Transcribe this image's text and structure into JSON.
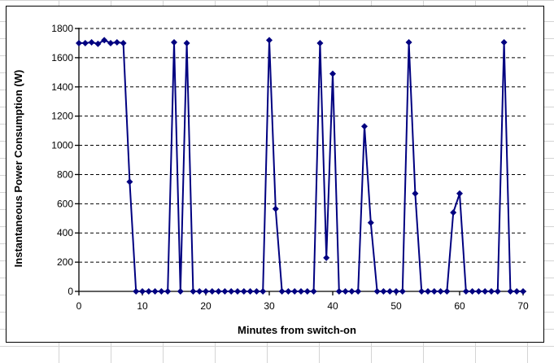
{
  "sheet": {
    "grid_color": "#d4d4d4",
    "background": "#ffffff"
  },
  "chart": {
    "background": "#ffffff",
    "border_color": "#000000",
    "series_color": "#000080",
    "gridline_color": "#000000",
    "x_axis": {
      "title": "Minutes from switch-on",
      "tick_labels": [
        "0",
        "10",
        "20",
        "30",
        "40",
        "50",
        "60",
        "70"
      ]
    },
    "y_axis": {
      "title": "Instantaneous Power Consumption (W)",
      "tick_labels": [
        "0",
        "200",
        "400",
        "600",
        "800",
        "1000",
        "1200",
        "1400",
        "1600",
        "1800"
      ]
    }
  },
  "chart_data": {
    "type": "line",
    "title": "",
    "xlabel": "Minutes from switch-on",
    "ylabel": "Instantaneous Power Consumption (W)",
    "xlim": [
      0,
      70
    ],
    "ylim": [
      0,
      1800
    ],
    "x_tick_interval": 10,
    "y_tick_interval": 200,
    "grid": "horizontal-dashed",
    "legend": "none",
    "marker": "diamond",
    "line_color": "#000080",
    "x": [
      0,
      1,
      2,
      3,
      4,
      5,
      6,
      7,
      8,
      9,
      10,
      11,
      12,
      13,
      14,
      15,
      16,
      17,
      18,
      19,
      20,
      21,
      22,
      23,
      24,
      25,
      26,
      27,
      28,
      29,
      30,
      31,
      32,
      33,
      34,
      35,
      36,
      37,
      38,
      39,
      40,
      41,
      42,
      43,
      44,
      45,
      46,
      47,
      48,
      49,
      50,
      51,
      52,
      53,
      54,
      55,
      56,
      57,
      58,
      59,
      60,
      61,
      62,
      63,
      64,
      65,
      66,
      67,
      68,
      69,
      70
    ],
    "series": [
      {
        "name": "Instantaneous power",
        "values": [
          1700,
          1700,
          1705,
          1695,
          1720,
          1700,
          1705,
          1700,
          750,
          0,
          0,
          0,
          0,
          0,
          0,
          1705,
          0,
          1700,
          0,
          0,
          0,
          0,
          0,
          0,
          0,
          0,
          0,
          0,
          0,
          0,
          1720,
          565,
          0,
          0,
          0,
          0,
          0,
          0,
          1700,
          230,
          1490,
          0,
          0,
          0,
          0,
          1130,
          470,
          0,
          0,
          0,
          0,
          0,
          1705,
          670,
          0,
          0,
          0,
          0,
          0,
          540,
          670,
          0,
          0,
          0,
          0,
          0,
          0,
          1705,
          0,
          0,
          0
        ]
      }
    ],
    "x_ticks": [
      0,
      10,
      20,
      30,
      40,
      50,
      60,
      70
    ],
    "y_ticks": [
      0,
      200,
      400,
      600,
      800,
      1000,
      1200,
      1400,
      1600,
      1800
    ]
  }
}
